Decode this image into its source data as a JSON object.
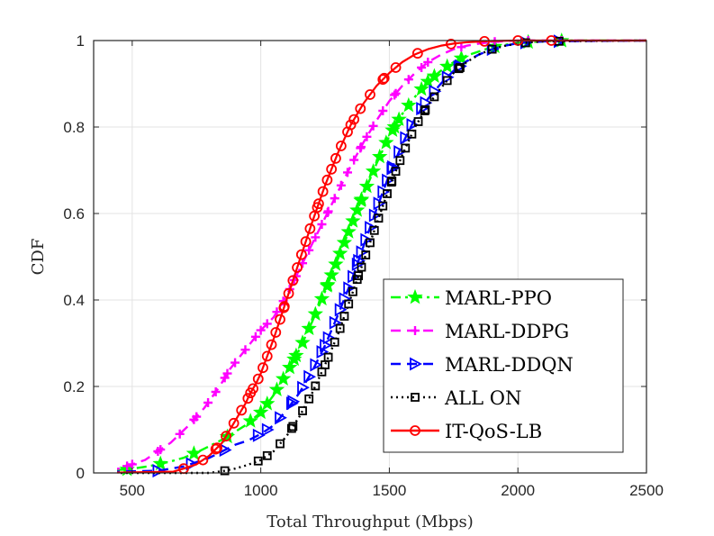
{
  "chart_data": {
    "type": "line",
    "xlabel": "Total Throughput (Mbps)",
    "ylabel": "CDF",
    "xlim": [
      350,
      2500
    ],
    "ylim": [
      0,
      1
    ],
    "xticks": [
      500,
      1000,
      1500,
      2000,
      2500
    ],
    "yticks": [
      0,
      0.2,
      0.4,
      0.6,
      0.8,
      1
    ],
    "xtick_labels": [
      "500",
      "1000",
      "1500",
      "2000",
      "2500"
    ],
    "ytick_labels": [
      "0",
      "0.2",
      "0.4",
      "0.6",
      "0.8",
      "1"
    ],
    "grid": true,
    "legend_position": "lower-right",
    "series": [
      {
        "name": "MARL-PPO",
        "color": "#00ff00",
        "marker": "star",
        "line": "dashdot",
        "x": [
          350,
          480,
          560,
          640,
          700,
          760,
          810,
          860,
          900,
          940,
          980,
          1000,
          1050,
          1100,
          1150,
          1200,
          1250,
          1300,
          1350,
          1400,
          1450,
          1500,
          1550,
          1600,
          1650,
          1700,
          1750,
          1800,
          1850,
          1900,
          1950,
          2000,
          2100,
          2200,
          2500
        ],
        "y": [
          0.005,
          0.008,
          0.015,
          0.025,
          0.035,
          0.05,
          0.065,
          0.08,
          0.095,
          0.11,
          0.13,
          0.14,
          0.18,
          0.23,
          0.285,
          0.35,
          0.42,
          0.495,
          0.57,
          0.645,
          0.715,
          0.78,
          0.83,
          0.87,
          0.905,
          0.93,
          0.95,
          0.965,
          0.975,
          0.985,
          0.99,
          0.995,
          0.998,
          1.0,
          1.0
        ]
      },
      {
        "name": "MARL-DDPG",
        "color": "#ff00ff",
        "marker": "plus",
        "line": "dashed",
        "x": [
          350,
          450,
          550,
          650,
          720,
          780,
          840,
          880,
          920,
          960,
          1000,
          1050,
          1100,
          1150,
          1200,
          1250,
          1300,
          1350,
          1400,
          1450,
          1500,
          1550,
          1600,
          1650,
          1700,
          1750,
          1800,
          1850,
          1900,
          2000,
          2500
        ],
        "y": [
          0.005,
          0.01,
          0.03,
          0.07,
          0.11,
          0.15,
          0.2,
          0.24,
          0.27,
          0.3,
          0.33,
          0.36,
          0.41,
          0.47,
          0.53,
          0.59,
          0.65,
          0.71,
          0.765,
          0.815,
          0.86,
          0.895,
          0.925,
          0.95,
          0.967,
          0.98,
          0.988,
          0.993,
          0.997,
          1.0,
          1.0
        ]
      },
      {
        "name": "MARL-DDQN",
        "color": "#0000ff",
        "marker": "triangle-right",
        "line": "dashed",
        "x": [
          350,
          600,
          650,
          700,
          750,
          800,
          850,
          900,
          950,
          1000,
          1050,
          1100,
          1150,
          1200,
          1250,
          1300,
          1350,
          1400,
          1450,
          1500,
          1550,
          1600,
          1650,
          1700,
          1750,
          1800,
          1850,
          1900,
          1950,
          2000,
          2100,
          2500
        ],
        "y": [
          0.002,
          0.005,
          0.01,
          0.015,
          0.025,
          0.035,
          0.05,
          0.065,
          0.075,
          0.09,
          0.11,
          0.145,
          0.185,
          0.235,
          0.295,
          0.365,
          0.44,
          0.525,
          0.61,
          0.69,
          0.76,
          0.82,
          0.865,
          0.9,
          0.93,
          0.952,
          0.968,
          0.98,
          0.988,
          0.994,
          0.998,
          1.0
        ]
      },
      {
        "name": "ALL ON",
        "color": "#000000",
        "marker": "square",
        "line": "dotted",
        "x": [
          350,
          800,
          860,
          900,
          940,
          970,
          1000,
          1050,
          1100,
          1150,
          1200,
          1250,
          1300,
          1350,
          1400,
          1450,
          1500,
          1550,
          1600,
          1650,
          1700,
          1750,
          1800,
          1850,
          1900,
          1950,
          2000,
          2050,
          2100,
          2500
        ],
        "y": [
          0.0,
          0.0,
          0.005,
          0.01,
          0.017,
          0.023,
          0.03,
          0.05,
          0.085,
          0.13,
          0.185,
          0.25,
          0.32,
          0.405,
          0.49,
          0.575,
          0.66,
          0.735,
          0.8,
          0.85,
          0.89,
          0.925,
          0.95,
          0.968,
          0.98,
          0.988,
          0.993,
          0.996,
          0.998,
          1.0
        ]
      },
      {
        "name": "IT-QoS-LB",
        "color": "#ff0000",
        "marker": "circle",
        "line": "solid",
        "x": [
          350,
          660,
          700,
          750,
          800,
          850,
          880,
          910,
          940,
          960,
          980,
          1000,
          1050,
          1100,
          1150,
          1200,
          1250,
          1300,
          1350,
          1400,
          1450,
          1500,
          1550,
          1600,
          1650,
          1700,
          1750,
          1800,
          1900,
          2000,
          2500
        ],
        "y": [
          0.0,
          0.003,
          0.01,
          0.02,
          0.04,
          0.07,
          0.1,
          0.13,
          0.16,
          0.185,
          0.205,
          0.23,
          0.31,
          0.4,
          0.49,
          0.58,
          0.665,
          0.74,
          0.805,
          0.855,
          0.895,
          0.925,
          0.95,
          0.968,
          0.98,
          0.988,
          0.993,
          0.996,
          0.999,
          1.0,
          1.0
        ]
      }
    ]
  }
}
